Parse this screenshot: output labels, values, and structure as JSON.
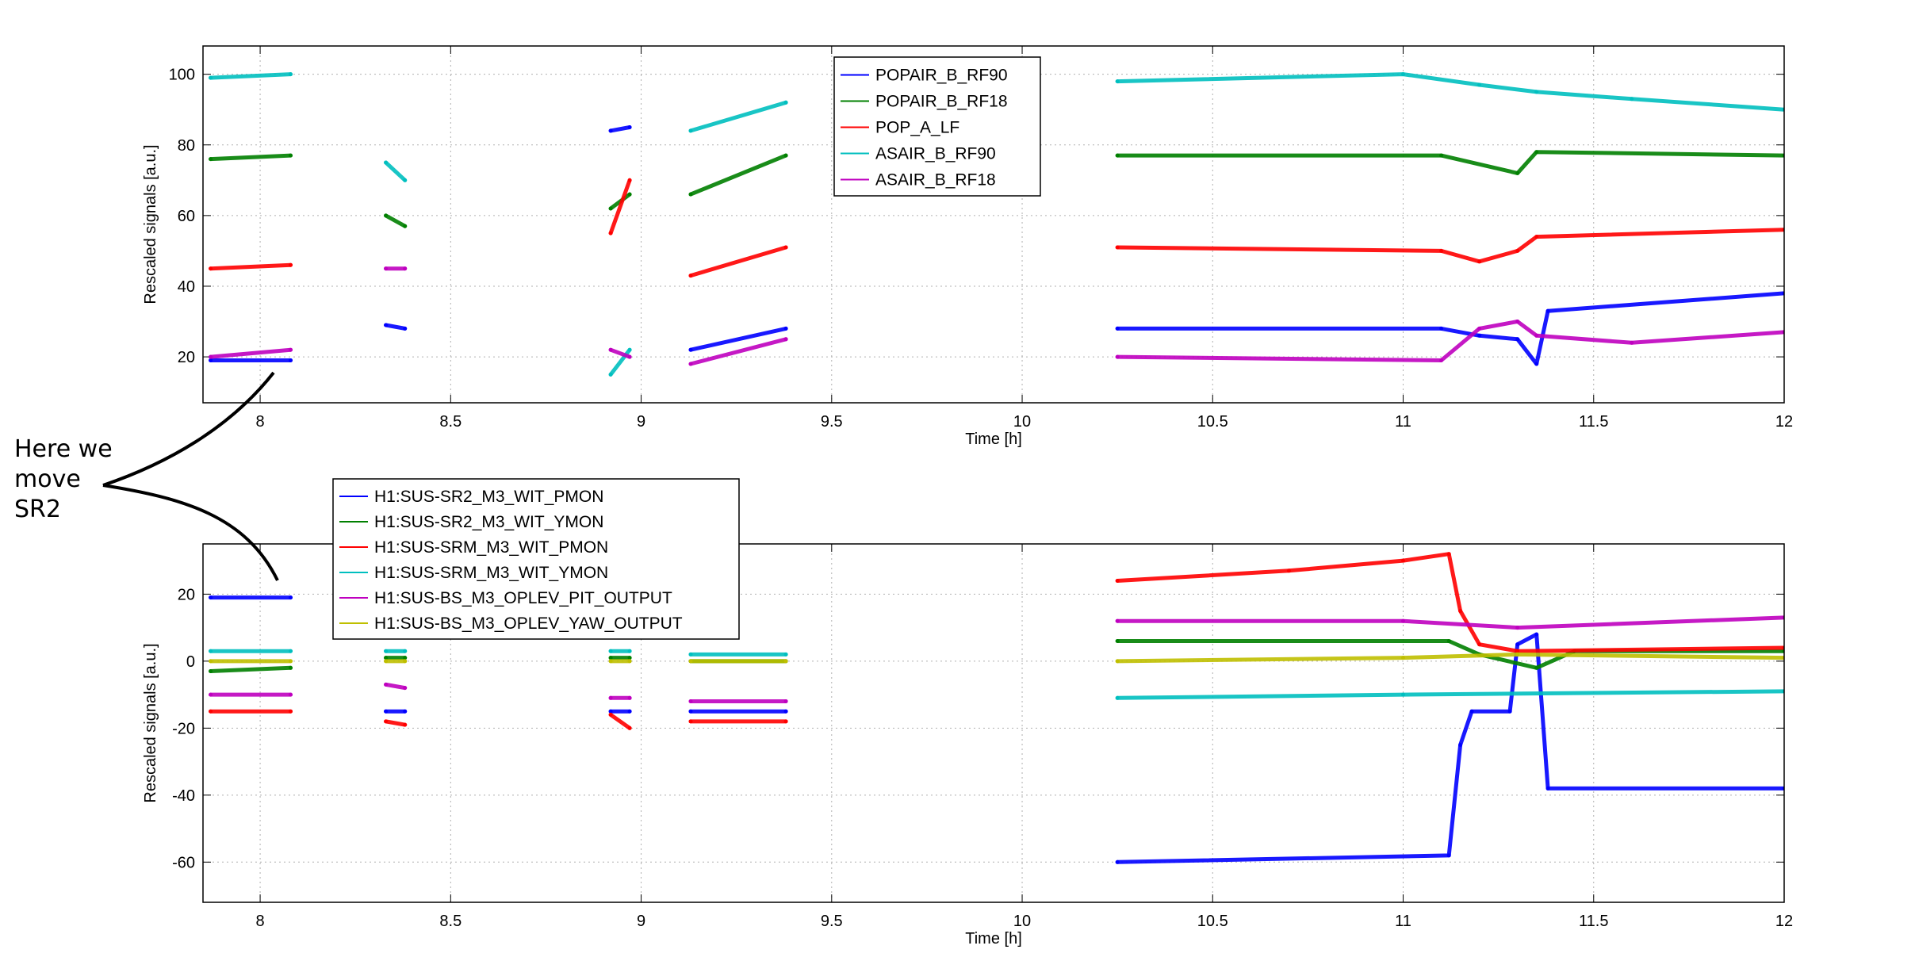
{
  "annotation": {
    "text": "Here we\nmove\nSR2"
  },
  "chart_data": [
    {
      "type": "line",
      "title": "",
      "xlabel": "Time [h]",
      "ylabel": "Rescaled signals [a.u.]",
      "xlim": [
        7.85,
        12.0
      ],
      "ylim": [
        7,
        108
      ],
      "xticks": [
        "8",
        "8.5",
        "9",
        "9.5",
        "10",
        "10.5",
        "11",
        "11.5",
        "12"
      ],
      "yticks": [
        "20",
        "40",
        "60",
        "80",
        "100"
      ],
      "grid": true,
      "legend_position": "top-center",
      "series": [
        {
          "name": "POPAIR_B_RF90",
          "color": "#0000ff",
          "segments": [
            [
              [
                7.87,
                19
              ],
              [
                8.08,
                19
              ]
            ],
            [
              [
                8.33,
                29
              ],
              [
                8.38,
                28
              ]
            ],
            [
              [
                8.92,
                84
              ],
              [
                8.97,
                85
              ]
            ],
            [
              [
                9.13,
                22
              ],
              [
                9.38,
                28
              ]
            ],
            [
              [
                10.25,
                28
              ],
              [
                11.1,
                28
              ],
              [
                11.2,
                26
              ],
              [
                11.3,
                25
              ],
              [
                11.35,
                18
              ],
              [
                11.38,
                33
              ],
              [
                12.0,
                38
              ]
            ]
          ]
        },
        {
          "name": "POPAIR_B_RF18",
          "color": "#008000",
          "segments": [
            [
              [
                7.87,
                76
              ],
              [
                8.08,
                77
              ]
            ],
            [
              [
                8.33,
                60
              ],
              [
                8.38,
                57
              ]
            ],
            [
              [
                8.92,
                62
              ],
              [
                8.97,
                66
              ]
            ],
            [
              [
                9.13,
                66
              ],
              [
                9.38,
                77
              ]
            ],
            [
              [
                10.25,
                77
              ],
              [
                11.1,
                77
              ],
              [
                11.3,
                72
              ],
              [
                11.35,
                78
              ],
              [
                12.0,
                77
              ]
            ]
          ]
        },
        {
          "name": "POP_A_LF",
          "color": "#ff0000",
          "segments": [
            [
              [
                7.87,
                45
              ],
              [
                8.08,
                46
              ]
            ],
            [
              [
                8.92,
                55
              ],
              [
                8.97,
                70
              ]
            ],
            [
              [
                9.13,
                43
              ],
              [
                9.38,
                51
              ]
            ],
            [
              [
                10.25,
                51
              ],
              [
                11.1,
                50
              ],
              [
                11.2,
                47
              ],
              [
                11.3,
                50
              ],
              [
                11.35,
                54
              ],
              [
                12.0,
                56
              ]
            ]
          ]
        },
        {
          "name": "ASAIR_B_RF90",
          "color": "#00bfbf",
          "segments": [
            [
              [
                7.87,
                99
              ],
              [
                8.08,
                100
              ]
            ],
            [
              [
                8.33,
                75
              ],
              [
                8.38,
                70
              ]
            ],
            [
              [
                8.92,
                15
              ],
              [
                8.97,
                22
              ]
            ],
            [
              [
                9.13,
                84
              ],
              [
                9.38,
                92
              ]
            ],
            [
              [
                10.25,
                98
              ],
              [
                11.0,
                100
              ],
              [
                11.2,
                97
              ],
              [
                11.35,
                95
              ],
              [
                11.6,
                93
              ],
              [
                12.0,
                90
              ]
            ]
          ]
        },
        {
          "name": "ASAIR_B_RF18",
          "color": "#bf00bf",
          "segments": [
            [
              [
                7.87,
                20
              ],
              [
                8.08,
                22
              ]
            ],
            [
              [
                8.33,
                45
              ],
              [
                8.38,
                45
              ]
            ],
            [
              [
                8.92,
                22
              ],
              [
                8.97,
                20
              ]
            ],
            [
              [
                9.13,
                18
              ],
              [
                9.38,
                25
              ]
            ],
            [
              [
                10.25,
                20
              ],
              [
                11.1,
                19
              ],
              [
                11.2,
                28
              ],
              [
                11.3,
                30
              ],
              [
                11.35,
                26
              ],
              [
                11.6,
                24
              ],
              [
                12.0,
                27
              ]
            ]
          ]
        }
      ]
    },
    {
      "type": "line",
      "title": "",
      "xlabel": "Time [h]",
      "ylabel": "Rescaled signals [a.u.]",
      "xlim": [
        7.85,
        12.0
      ],
      "ylim": [
        -72,
        35
      ],
      "xticks": [
        "8",
        "8.5",
        "9",
        "9.5",
        "10",
        "10.5",
        "11",
        "11.5",
        "12"
      ],
      "yticks": [
        "20",
        "0",
        "-20",
        "-40",
        "-60"
      ],
      "grid": true,
      "legend_position": "top-left",
      "series": [
        {
          "name": "H1:SUS-SR2_M3_WIT_PMON",
          "color": "#0000ff",
          "segments": [
            [
              [
                7.87,
                19
              ],
              [
                8.08,
                19
              ]
            ],
            [
              [
                8.33,
                -15
              ],
              [
                8.38,
                -15
              ]
            ],
            [
              [
                8.92,
                -15
              ],
              [
                8.97,
                -15
              ]
            ],
            [
              [
                9.13,
                -15
              ],
              [
                9.38,
                -15
              ]
            ],
            [
              [
                10.25,
                -60
              ],
              [
                11.12,
                -58
              ],
              [
                11.15,
                -25
              ],
              [
                11.18,
                -15
              ],
              [
                11.28,
                -15
              ],
              [
                11.3,
                5
              ],
              [
                11.35,
                8
              ],
              [
                11.38,
                -38
              ],
              [
                12.0,
                -38
              ]
            ]
          ]
        },
        {
          "name": "H1:SUS-SR2_M3_WIT_YMON",
          "color": "#008000",
          "segments": [
            [
              [
                7.87,
                -3
              ],
              [
                8.08,
                -2
              ]
            ],
            [
              [
                8.33,
                1
              ],
              [
                8.38,
                1
              ]
            ],
            [
              [
                8.92,
                1
              ],
              [
                8.97,
                1
              ]
            ],
            [
              [
                9.13,
                0
              ],
              [
                9.38,
                0
              ]
            ],
            [
              [
                10.25,
                6
              ],
              [
                11.12,
                6
              ],
              [
                11.2,
                2
              ],
              [
                11.35,
                -2
              ],
              [
                11.45,
                3
              ],
              [
                12.0,
                3
              ]
            ]
          ]
        },
        {
          "name": "H1:SUS-SRM_M3_WIT_PMON",
          "color": "#ff0000",
          "segments": [
            [
              [
                7.87,
                -15
              ],
              [
                8.08,
                -15
              ]
            ],
            [
              [
                8.33,
                -18
              ],
              [
                8.38,
                -19
              ]
            ],
            [
              [
                8.92,
                -16
              ],
              [
                8.97,
                -20
              ]
            ],
            [
              [
                9.13,
                -18
              ],
              [
                9.38,
                -18
              ]
            ],
            [
              [
                10.25,
                24
              ],
              [
                10.7,
                27
              ],
              [
                11.0,
                30
              ],
              [
                11.12,
                32
              ],
              [
                11.15,
                15
              ],
              [
                11.2,
                5
              ],
              [
                11.3,
                3
              ],
              [
                12.0,
                4
              ]
            ]
          ]
        },
        {
          "name": "H1:SUS-SRM_M3_WIT_YMON",
          "color": "#00bfbf",
          "segments": [
            [
              [
                7.87,
                3
              ],
              [
                8.08,
                3
              ]
            ],
            [
              [
                8.33,
                3
              ],
              [
                8.38,
                3
              ]
            ],
            [
              [
                8.92,
                3
              ],
              [
                8.97,
                3
              ]
            ],
            [
              [
                9.13,
                2
              ],
              [
                9.38,
                2
              ]
            ],
            [
              [
                10.25,
                -11
              ],
              [
                11.0,
                -10
              ],
              [
                12.0,
                -9
              ]
            ]
          ]
        },
        {
          "name": "H1:SUS-BS_M3_OPLEV_PIT_OUTPUT",
          "color": "#bf00bf",
          "segments": [
            [
              [
                7.87,
                -10
              ],
              [
                8.08,
                -10
              ]
            ],
            [
              [
                8.33,
                -7
              ],
              [
                8.38,
                -8
              ]
            ],
            [
              [
                8.92,
                -11
              ],
              [
                8.97,
                -11
              ]
            ],
            [
              [
                9.13,
                -12
              ],
              [
                9.38,
                -12
              ]
            ],
            [
              [
                10.25,
                12
              ],
              [
                11.0,
                12
              ],
              [
                11.3,
                10
              ],
              [
                12.0,
                13
              ]
            ]
          ]
        },
        {
          "name": "H1:SUS-BS_M3_OPLEV_YAW_OUTPUT",
          "color": "#bfbf00",
          "segments": [
            [
              [
                7.87,
                0
              ],
              [
                8.08,
                0
              ]
            ],
            [
              [
                8.33,
                0
              ],
              [
                8.38,
                0
              ]
            ],
            [
              [
                8.92,
                0
              ],
              [
                8.97,
                0
              ]
            ],
            [
              [
                9.13,
                0
              ],
              [
                9.38,
                0
              ]
            ],
            [
              [
                10.25,
                0
              ],
              [
                11.0,
                1
              ],
              [
                11.3,
                2
              ],
              [
                12.0,
                1
              ]
            ]
          ]
        }
      ]
    }
  ]
}
